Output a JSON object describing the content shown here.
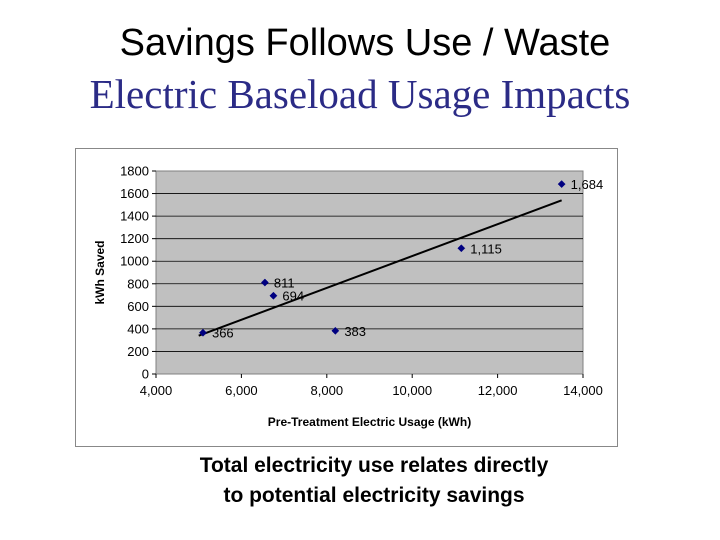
{
  "slide": {
    "title": "Savings Follows Use / Waste",
    "subtitle": "Electric Baseload Usage Impacts",
    "caption_line1": "Total electricity use relates directly",
    "caption_line2": "to potential electricity savings"
  },
  "colors": {
    "subtitle": "#2b2b86",
    "plot_background": "#c0c0c0",
    "marker": "#000080",
    "trendline": "#000000"
  },
  "chart_data": {
    "type": "scatter",
    "xlabel": "Pre-Treatment Electric Usage (kWh)",
    "ylabel": "kWh Saved",
    "xlim": [
      4000,
      14000
    ],
    "ylim": [
      0,
      1800
    ],
    "xticks": [
      4000,
      6000,
      8000,
      10000,
      12000,
      14000
    ],
    "xtick_labels": [
      "4,000",
      "6,000",
      "8,000",
      "10,000",
      "12,000",
      "14,000"
    ],
    "yticks": [
      0,
      200,
      400,
      600,
      800,
      1000,
      1200,
      1400,
      1600,
      1800
    ],
    "ytick_labels": [
      "0",
      "200",
      "400",
      "600",
      "800",
      "1000",
      "1200",
      "1400",
      "1600",
      "1800"
    ],
    "grid": "horizontal",
    "points": [
      {
        "x": 5100,
        "y": 366,
        "label": "366"
      },
      {
        "x": 6550,
        "y": 811,
        "label": "811"
      },
      {
        "x": 6750,
        "y": 694,
        "label": "694"
      },
      {
        "x": 8200,
        "y": 383,
        "label": "383"
      },
      {
        "x": 11150,
        "y": 1115,
        "label": "1,115"
      },
      {
        "x": 13500,
        "y": 1684,
        "label": "1,684"
      }
    ],
    "trendline": {
      "x0": 5000,
      "y0": 340,
      "x1": 13500,
      "y1": 1540
    }
  }
}
